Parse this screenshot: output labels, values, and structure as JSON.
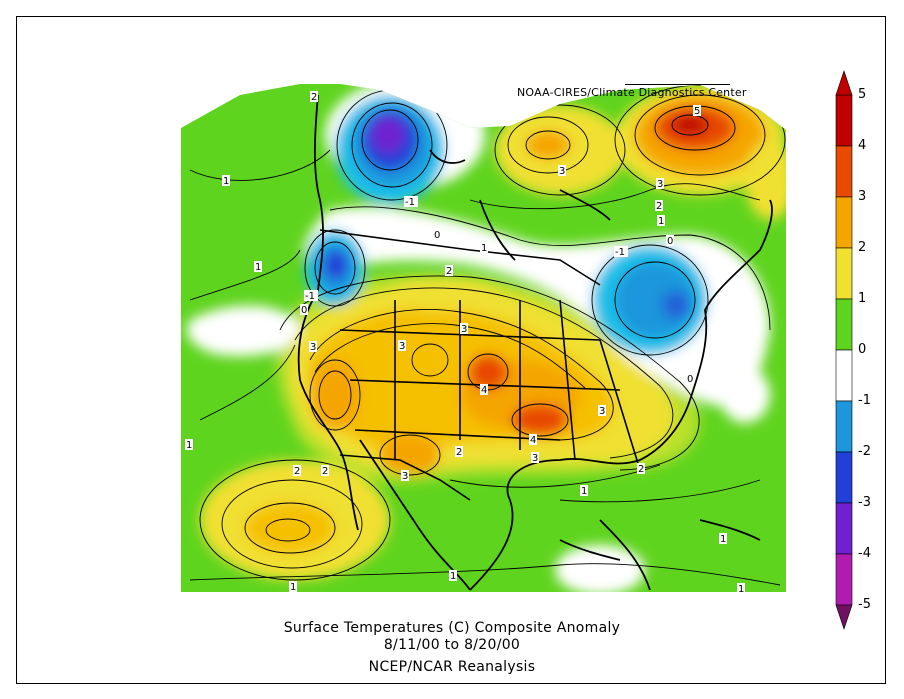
{
  "credit": "NOAA-CIRES/Climate Diagnostics Center",
  "caption": {
    "line1": "Surface Temperatures (C)   Composite Anomaly",
    "line2": "8/11/00  to 8/20/00",
    "line3": "NCEP/NCAR Reanalysis"
  },
  "colorbar": {
    "levels": [
      {
        "value": "5",
        "color": "#c00000"
      },
      {
        "value": "4",
        "color": "#e84a00"
      },
      {
        "value": "3",
        "color": "#f5a500"
      },
      {
        "value": "2",
        "color": "#f0e030"
      },
      {
        "value": "1",
        "color": "#5fd41e"
      },
      {
        "value": "0",
        "color": "#ffffff"
      },
      {
        "value": "-1",
        "color": "#1e96dc"
      },
      {
        "value": "-2",
        "color": "#2040d8"
      },
      {
        "value": "-3",
        "color": "#7020d0"
      },
      {
        "value": "-4",
        "color": "#b01cb0"
      },
      {
        "value": "-5",
        "color": "#701060"
      }
    ]
  },
  "contour_labels": [
    "2",
    "1",
    "1",
    "-1",
    "0",
    "1",
    "2",
    "-1",
    "0",
    "3",
    "3",
    "3",
    "4",
    "4",
    "3",
    "3",
    "2",
    "2",
    "2",
    "3",
    "1",
    "1",
    "1",
    "1",
    "1",
    "1",
    "3",
    "5",
    "3",
    "2",
    "1",
    "0",
    "-1",
    "0",
    "2"
  ]
}
